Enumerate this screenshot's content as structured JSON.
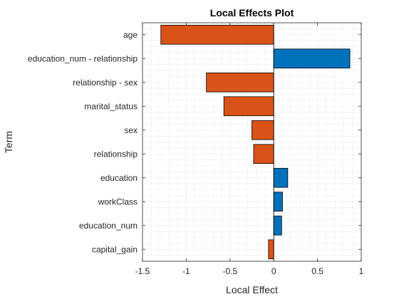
{
  "chart_data": {
    "type": "bar",
    "orientation": "horizontal",
    "title": "Local Effects Plot",
    "xlabel": "Local Effect",
    "ylabel": "Term",
    "xlim": [
      -1.5,
      1
    ],
    "xticks": [
      -1.5,
      -1,
      -0.5,
      0,
      0.5,
      1
    ],
    "xtick_labels": [
      "-1.5",
      "-1",
      "-0.5",
      "0",
      "0.5",
      "1"
    ],
    "grid": true,
    "grid_minor": true,
    "categories": [
      "age",
      "education_num - relationship",
      "relationship - sex",
      "marital_status",
      "sex",
      "relationship",
      "education",
      "workClass",
      "education_num",
      "capital_gain"
    ],
    "values": [
      -1.29,
      0.87,
      -0.77,
      -0.57,
      -0.25,
      -0.23,
      0.16,
      0.1,
      0.09,
      -0.06
    ],
    "colors": {
      "negative": "#D95319",
      "positive": "#0072BD"
    }
  }
}
